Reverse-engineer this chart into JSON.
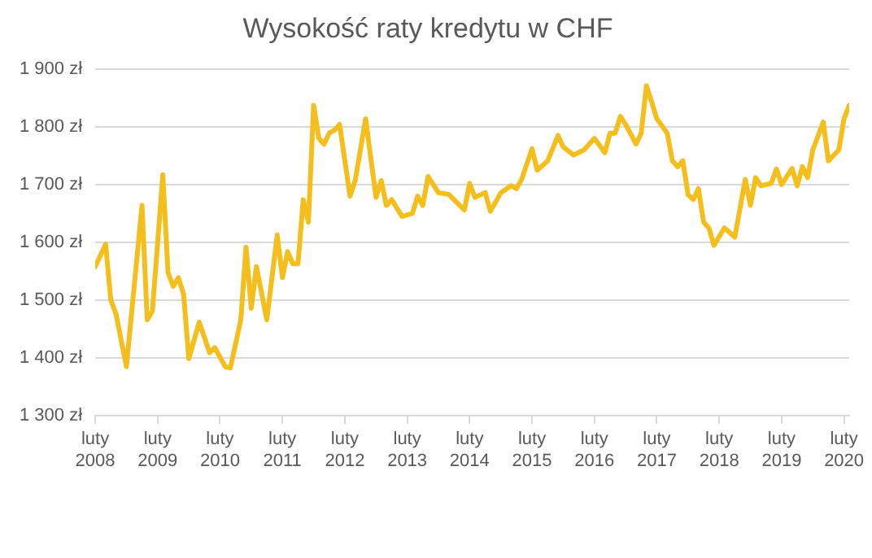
{
  "chart_data": {
    "type": "line",
    "title": "Wysokość raty kredytu w CHF",
    "x": [
      "2008-02",
      "2008-04",
      "2008-05",
      "2008-06",
      "2008-08",
      "2008-11",
      "2008-12",
      "2009-01",
      "2009-03",
      "2009-04",
      "2009-05",
      "2009-06",
      "2009-07",
      "2009-08",
      "2009-10",
      "2009-12",
      "2010-01",
      "2010-03",
      "2010-04",
      "2010-06",
      "2010-07",
      "2010-08",
      "2010-09",
      "2010-11",
      "2011-01",
      "2011-02",
      "2011-03",
      "2011-04",
      "2011-05",
      "2011-06",
      "2011-07",
      "2011-08",
      "2011-09",
      "2011-10",
      "2011-11",
      "2011-12",
      "2012-01",
      "2012-03",
      "2012-04",
      "2012-06",
      "2012-08",
      "2012-09",
      "2012-10",
      "2012-11",
      "2013-01",
      "2013-03",
      "2013-04",
      "2013-05",
      "2013-06",
      "2013-08",
      "2013-10",
      "2014-01",
      "2014-02",
      "2014-03",
      "2014-05",
      "2014-06",
      "2014-08",
      "2014-10",
      "2014-11",
      "2014-12",
      "2015-02",
      "2015-03",
      "2015-05",
      "2015-07",
      "2015-08",
      "2015-10",
      "2015-12",
      "2016-02",
      "2016-04",
      "2016-05",
      "2016-06",
      "2016-07",
      "2016-08",
      "2016-10",
      "2016-11",
      "2016-12",
      "2017-01",
      "2017-02",
      "2017-04",
      "2017-05",
      "2017-06",
      "2017-07",
      "2017-08",
      "2017-09",
      "2017-10",
      "2017-11",
      "2017-12",
      "2018-01",
      "2018-03",
      "2018-05",
      "2018-07",
      "2018-08",
      "2018-09",
      "2018-10",
      "2018-12",
      "2019-01",
      "2019-02",
      "2019-04",
      "2019-05",
      "2019-06",
      "2019-07",
      "2019-08",
      "2019-10",
      "2019-11",
      "2020-01",
      "2020-02",
      "2020-03"
    ],
    "series": [
      {
        "color": "#f4bf1c",
        "values": [
          1558,
          1597,
          1500,
          1476,
          1385,
          1664,
          1466,
          1481,
          1717,
          1548,
          1524,
          1539,
          1510,
          1399,
          1462,
          1409,
          1418,
          1385,
          1383,
          1466,
          1592,
          1486,
          1558,
          1466,
          1613,
          1539,
          1584,
          1563,
          1563,
          1674,
          1635,
          1837,
          1780,
          1770,
          1789,
          1794,
          1804,
          1680,
          1707,
          1814,
          1678,
          1707,
          1664,
          1674,
          1645,
          1650,
          1680,
          1664,
          1714,
          1686,
          1683,
          1656,
          1702,
          1678,
          1686,
          1654,
          1686,
          1698,
          1693,
          1709,
          1762,
          1725,
          1741,
          1785,
          1765,
          1751,
          1760,
          1780,
          1755,
          1789,
          1789,
          1818,
          1804,
          1770,
          1789,
          1871,
          1843,
          1814,
          1789,
          1741,
          1731,
          1741,
          1683,
          1674,
          1693,
          1635,
          1625,
          1595,
          1625,
          1609,
          1709,
          1664,
          1712,
          1698,
          1702,
          1727,
          1700,
          1728,
          1698,
          1731,
          1712,
          1760,
          1808,
          1741,
          1760,
          1814,
          1837
        ]
      }
    ],
    "xlim": [
      "2008-02",
      "2020-03"
    ],
    "xticks": [
      {
        "value": "2008-02",
        "label": "luty 2008"
      },
      {
        "value": "2009-02",
        "label": "luty 2009"
      },
      {
        "value": "2010-02",
        "label": "luty 2010"
      },
      {
        "value": "2011-02",
        "label": "luty 2011"
      },
      {
        "value": "2012-02",
        "label": "luty 2012"
      },
      {
        "value": "2013-02",
        "label": "luty 2013"
      },
      {
        "value": "2014-02",
        "label": "luty 2014"
      },
      {
        "value": "2015-02",
        "label": "luty 2015"
      },
      {
        "value": "2016-02",
        "label": "luty 2016"
      },
      {
        "value": "2017-02",
        "label": "luty 2017"
      },
      {
        "value": "2018-02",
        "label": "luty 2018"
      },
      {
        "value": "2019-02",
        "label": "luty 2019"
      },
      {
        "value": "2020-02",
        "label": "luty 2020"
      }
    ],
    "ylim": [
      1300,
      1900
    ],
    "yticks": [
      {
        "value": 1300,
        "label": "1 300 zł"
      },
      {
        "value": 1400,
        "label": "1 400 zł"
      },
      {
        "value": 1500,
        "label": "1 500 zł"
      },
      {
        "value": 1600,
        "label": "1 600 zł"
      },
      {
        "value": 1700,
        "label": "1 700 zł"
      },
      {
        "value": 1800,
        "label": "1 800 zł"
      },
      {
        "value": 1900,
        "label": "1 900 zł"
      }
    ],
    "grid": "y",
    "legend": false,
    "marker": "none",
    "line_style": "solid"
  }
}
